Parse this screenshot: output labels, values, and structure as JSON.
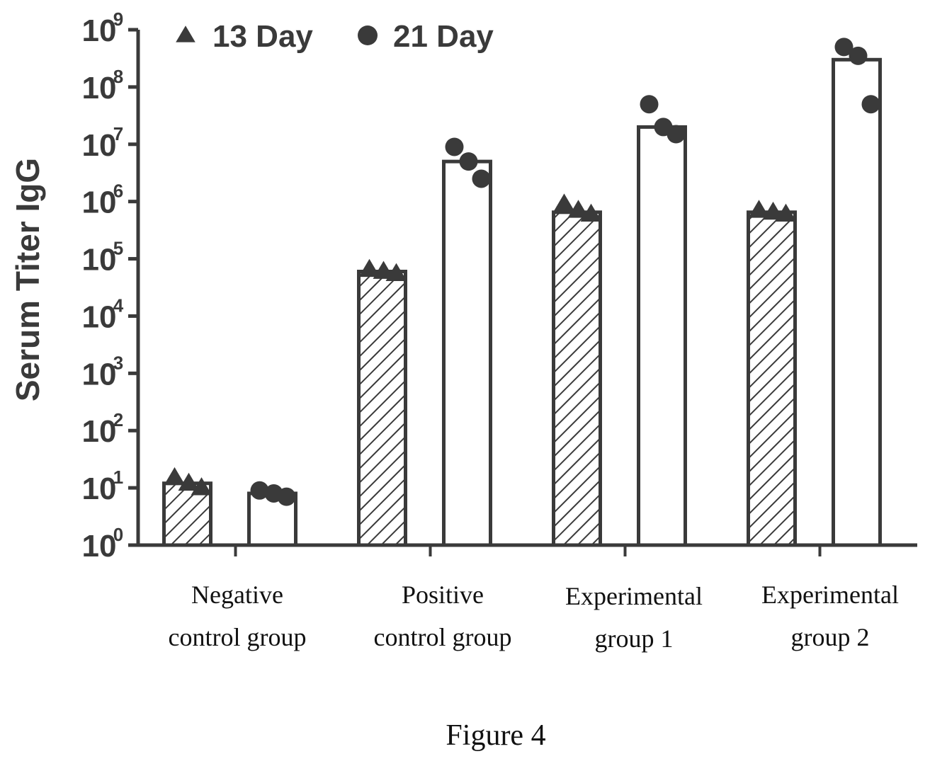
{
  "chart_data": {
    "type": "bar",
    "ylabel": "Serum Titer IgG",
    "xlabel": "",
    "yscale": "log",
    "ylim": [
      1,
      1000000000
    ],
    "ytick_bases": [
      "10",
      "10",
      "10",
      "10",
      "10",
      "10",
      "10",
      "10",
      "10",
      "10"
    ],
    "ytick_exponents": [
      "0",
      "1",
      "2",
      "3",
      "4",
      "5",
      "6",
      "7",
      "8",
      "9"
    ],
    "categories": [
      [
        "Negative",
        "control group"
      ],
      [
        "Positive",
        "control group"
      ],
      [
        "Experimental",
        "group 1"
      ],
      [
        "Experimental",
        "group 2"
      ]
    ],
    "legend_position": "top-left",
    "series": [
      {
        "name": "13 Day",
        "marker": "triangle",
        "bar_pattern": "diagonal-hatch",
        "values": [
          12,
          60000,
          650000,
          650000
        ],
        "points": [
          [
            15,
            12,
            10
          ],
          [
            65000,
            60000,
            55000
          ],
          [
            900000,
            700000,
            600000
          ],
          [
            700000,
            650000,
            600000
          ]
        ]
      },
      {
        "name": "21 Day",
        "marker": "circle",
        "bar_pattern": "open",
        "values": [
          8,
          5000000,
          20000000,
          300000000
        ],
        "points": [
          [
            9,
            8,
            7
          ],
          [
            9000000,
            5000000,
            2500000
          ],
          [
            50000000,
            20000000,
            15000000
          ],
          [
            500000000,
            350000000,
            50000000
          ]
        ]
      }
    ],
    "caption": "Figure 4",
    "colors": {
      "ink": "#3a3a3a",
      "text": "#111111",
      "background": "#ffffff"
    }
  }
}
